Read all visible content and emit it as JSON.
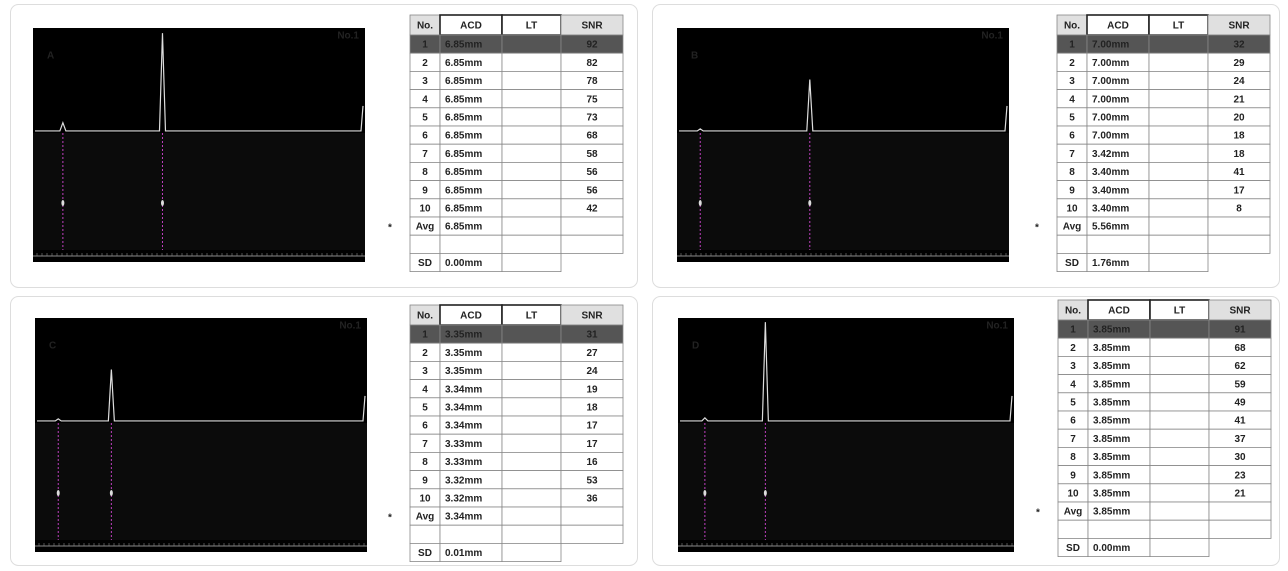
{
  "columns": [
    "No.",
    "ACD",
    "LT",
    "SNR"
  ],
  "panels": [
    {
      "label": "A",
      "screen_label": "No.1",
      "marker": "*",
      "rows": [
        {
          "no": "1",
          "acd": "6.85mm",
          "snr": "92"
        },
        {
          "no": "2",
          "acd": "6.85mm",
          "snr": "82"
        },
        {
          "no": "3",
          "acd": "6.85mm",
          "snr": "78"
        },
        {
          "no": "4",
          "acd": "6.85mm",
          "snr": "75"
        },
        {
          "no": "5",
          "acd": "6.85mm",
          "snr": "73"
        },
        {
          "no": "6",
          "acd": "6.85mm",
          "snr": "68"
        },
        {
          "no": "7",
          "acd": "6.85mm",
          "snr": "58"
        },
        {
          "no": "8",
          "acd": "6.85mm",
          "snr": "56"
        },
        {
          "no": "9",
          "acd": "6.85mm",
          "snr": "56"
        },
        {
          "no": "10",
          "acd": "6.85mm",
          "snr": "42"
        }
      ],
      "avg": {
        "label": "Avg",
        "acd": "6.85mm"
      },
      "sd": {
        "label": "SD",
        "acd": "0.00mm"
      }
    },
    {
      "label": "B",
      "screen_label": "No.1",
      "marker": "*",
      "rows": [
        {
          "no": "1",
          "acd": "7.00mm",
          "snr": "32"
        },
        {
          "no": "2",
          "acd": "7.00mm",
          "snr": "29"
        },
        {
          "no": "3",
          "acd": "7.00mm",
          "snr": "24"
        },
        {
          "no": "4",
          "acd": "7.00mm",
          "snr": "21"
        },
        {
          "no": "5",
          "acd": "7.00mm",
          "snr": "20"
        },
        {
          "no": "6",
          "acd": "7.00mm",
          "snr": "18"
        },
        {
          "no": "7",
          "acd": "3.42mm",
          "snr": "18"
        },
        {
          "no": "8",
          "acd": "3.40mm",
          "snr": "41"
        },
        {
          "no": "9",
          "acd": "3.40mm",
          "snr": "17"
        },
        {
          "no": "10",
          "acd": "3.40mm",
          "snr": "8"
        }
      ],
      "avg": {
        "label": "Avg",
        "acd": "5.56mm"
      },
      "sd": {
        "label": "SD",
        "acd": "1.76mm"
      }
    },
    {
      "label": "C",
      "screen_label": "No.1",
      "marker": "*",
      "rows": [
        {
          "no": "1",
          "acd": "3.35mm",
          "snr": "31"
        },
        {
          "no": "2",
          "acd": "3.35mm",
          "snr": "27"
        },
        {
          "no": "3",
          "acd": "3.35mm",
          "snr": "24"
        },
        {
          "no": "4",
          "acd": "3.34mm",
          "snr": "19"
        },
        {
          "no": "5",
          "acd": "3.34mm",
          "snr": "18"
        },
        {
          "no": "6",
          "acd": "3.34mm",
          "snr": "17"
        },
        {
          "no": "7",
          "acd": "3.33mm",
          "snr": "17"
        },
        {
          "no": "8",
          "acd": "3.33mm",
          "snr": "16"
        },
        {
          "no": "9",
          "acd": "3.32mm",
          "snr": "53"
        },
        {
          "no": "10",
          "acd": "3.32mm",
          "snr": "36"
        }
      ],
      "avg": {
        "label": "Avg",
        "acd": "3.34mm"
      },
      "sd": {
        "label": "SD",
        "acd": "0.01mm"
      }
    },
    {
      "label": "D",
      "screen_label": "No.1",
      "marker": "*",
      "rows": [
        {
          "no": "1",
          "acd": "3.85mm",
          "snr": "91"
        },
        {
          "no": "2",
          "acd": "3.85mm",
          "snr": "68"
        },
        {
          "no": "3",
          "acd": "3.85mm",
          "snr": "62"
        },
        {
          "no": "4",
          "acd": "3.85mm",
          "snr": "59"
        },
        {
          "no": "5",
          "acd": "3.85mm",
          "snr": "49"
        },
        {
          "no": "6",
          "acd": "3.85mm",
          "snr": "41"
        },
        {
          "no": "7",
          "acd": "3.85mm",
          "snr": "37"
        },
        {
          "no": "8",
          "acd": "3.85mm",
          "snr": "30"
        },
        {
          "no": "9",
          "acd": "3.85mm",
          "snr": "23"
        },
        {
          "no": "10",
          "acd": "3.85mm",
          "snr": "21"
        }
      ],
      "avg": {
        "label": "Avg",
        "acd": "3.85mm"
      },
      "sd": {
        "label": "SD",
        "acd": "0.00mm"
      }
    }
  ]
}
